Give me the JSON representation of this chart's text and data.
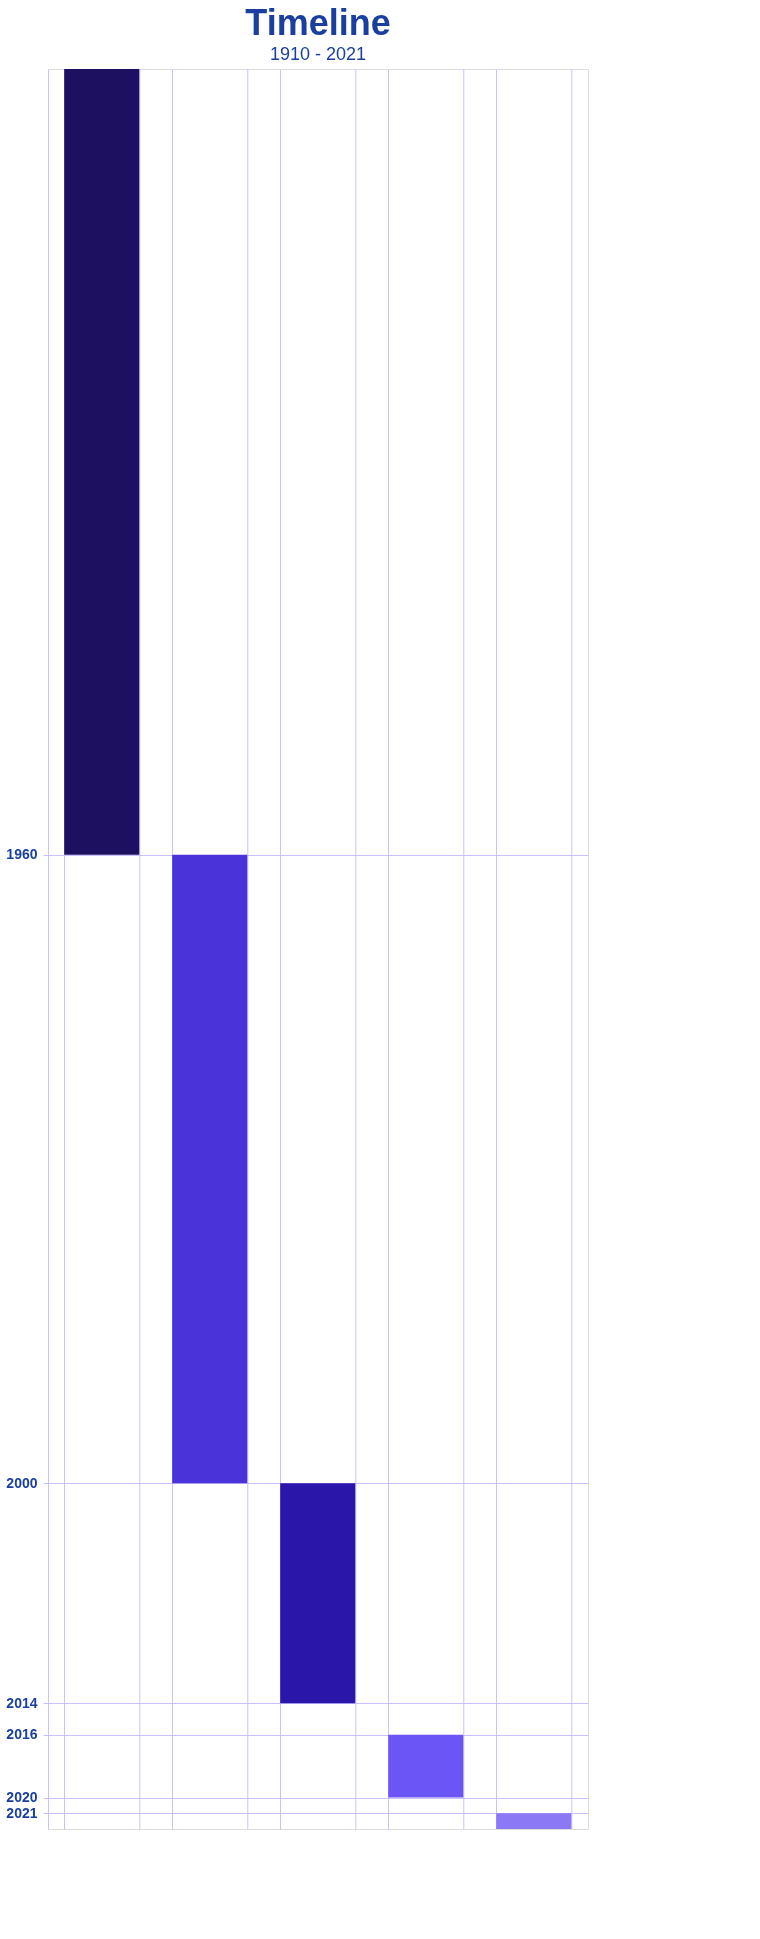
{
  "chart_data": {
    "type": "bar",
    "title": "Timeline",
    "subtitle": "1910 - 2021",
    "categories": [
      null,
      null,
      null,
      null,
      null
    ],
    "base": [
      1910,
      1960,
      2000,
      2016,
      2021
    ],
    "values": [
      50,
      40,
      14,
      4,
      1
    ],
    "colors": [
      "#1e1060",
      "#4a33d8",
      "#2a17aa",
      "#6b55f5",
      "#8a78f5"
    ],
    "ylim": [
      2022,
      1910
    ],
    "yticks": [
      1960,
      2000,
      2014,
      2016,
      2020,
      2021
    ],
    "grid": true,
    "tick_labels": "y"
  }
}
